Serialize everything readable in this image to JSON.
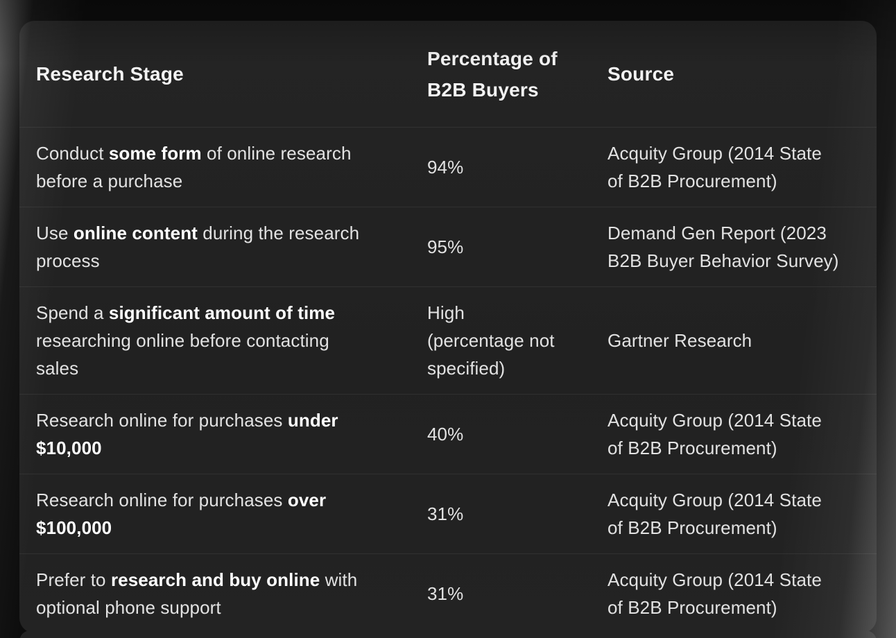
{
  "theme": {
    "page_bg": "#0d0d0d",
    "card_bg": "#222222",
    "row_separator": "rgba(255,255,255,0.065)",
    "header_text": "#f3f3f3",
    "body_text": "#e2e2e2",
    "bold_text": "#ffffff"
  },
  "chart_data": {
    "type": "table",
    "columns": [
      "Research Stage",
      "Percentage of\nB2B Buyers",
      "Source"
    ],
    "rows": [
      {
        "stage": [
          {
            "text": "Conduct ",
            "bold": false
          },
          {
            "text": "some form",
            "bold": true
          },
          {
            "text": " of online research\nbefore a purchase",
            "bold": false
          }
        ],
        "percentage": "94%",
        "source": "Acquity Group (2014 State\nof B2B Procurement)"
      },
      {
        "stage": [
          {
            "text": "Use ",
            "bold": false
          },
          {
            "text": "online content",
            "bold": true
          },
          {
            "text": " during the research\nprocess",
            "bold": false
          }
        ],
        "percentage": "95%",
        "source": "Demand Gen Report (2023\nB2B Buyer Behavior Survey)"
      },
      {
        "stage": [
          {
            "text": "Spend a ",
            "bold": false
          },
          {
            "text": "significant amount of time",
            "bold": true
          },
          {
            "text": "\nresearching online before contacting\nsales",
            "bold": false
          }
        ],
        "percentage": "High\n(percentage not\nspecified)",
        "source": "Gartner Research"
      },
      {
        "stage": [
          {
            "text": "Research online for purchases ",
            "bold": false
          },
          {
            "text": "under\n$10,000",
            "bold": true
          }
        ],
        "percentage": "40%",
        "source": "Acquity Group (2014 State\nof B2B Procurement)"
      },
      {
        "stage": [
          {
            "text": "Research online for purchases ",
            "bold": false
          },
          {
            "text": "over\n$100,000",
            "bold": true
          }
        ],
        "percentage": "31%",
        "source": "Acquity Group (2014 State\nof B2B Procurement)"
      },
      {
        "stage": [
          {
            "text": "Prefer to ",
            "bold": false
          },
          {
            "text": "research and buy online",
            "bold": true
          },
          {
            "text": " with\noptional phone support",
            "bold": false
          }
        ],
        "percentage": "31%",
        "source": "Acquity Group (2014 State\nof B2B Procurement)"
      }
    ]
  }
}
